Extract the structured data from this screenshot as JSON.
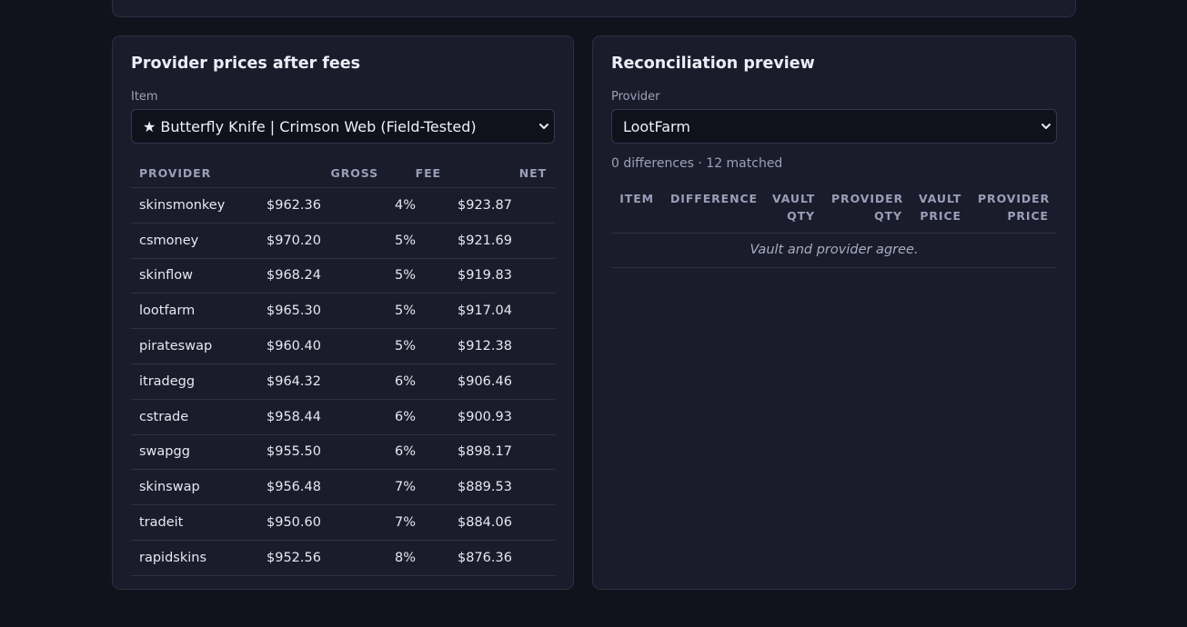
{
  "prices_panel": {
    "title": "Provider prices after fees",
    "item_label": "Item",
    "item_selected": "★ Butterfly Knife | Crimson Web (Field-Tested)",
    "columns": [
      "PROVIDER",
      "GROSS",
      "FEE",
      "NET"
    ],
    "rows": [
      {
        "provider": "skinsmonkey",
        "gross": "$962.36",
        "fee": "4%",
        "net": "$923.87"
      },
      {
        "provider": "csmoney",
        "gross": "$970.20",
        "fee": "5%",
        "net": "$921.69"
      },
      {
        "provider": "skinflow",
        "gross": "$968.24",
        "fee": "5%",
        "net": "$919.83"
      },
      {
        "provider": "lootfarm",
        "gross": "$965.30",
        "fee": "5%",
        "net": "$917.04"
      },
      {
        "provider": "pirateswap",
        "gross": "$960.40",
        "fee": "5%",
        "net": "$912.38"
      },
      {
        "provider": "itradegg",
        "gross": "$964.32",
        "fee": "6%",
        "net": "$906.46"
      },
      {
        "provider": "cstrade",
        "gross": "$958.44",
        "fee": "6%",
        "net": "$900.93"
      },
      {
        "provider": "swapgg",
        "gross": "$955.50",
        "fee": "6%",
        "net": "$898.17"
      },
      {
        "provider": "skinswap",
        "gross": "$956.48",
        "fee": "7%",
        "net": "$889.53"
      },
      {
        "provider": "tradeit",
        "gross": "$950.60",
        "fee": "7%",
        "net": "$884.06"
      },
      {
        "provider": "rapidskins",
        "gross": "$952.56",
        "fee": "8%",
        "net": "$876.36"
      }
    ]
  },
  "recon_panel": {
    "title": "Reconciliation preview",
    "provider_label": "Provider",
    "provider_selected": "LootFarm",
    "summary": "0 differences · 12 matched",
    "columns": [
      {
        "line1": "ITEM",
        "line2": ""
      },
      {
        "line1": "DIFFERENCE",
        "line2": ""
      },
      {
        "line1": "VAULT",
        "line2": "QTY"
      },
      {
        "line1": "PROVIDER",
        "line2": "QTY"
      },
      {
        "line1": "VAULT",
        "line2": "PRICE"
      },
      {
        "line1": "PROVIDER",
        "line2": "PRICE"
      }
    ],
    "empty_message": "Vault and provider agree."
  },
  "icons": {
    "select_arrow": "chevron-down-icon"
  }
}
